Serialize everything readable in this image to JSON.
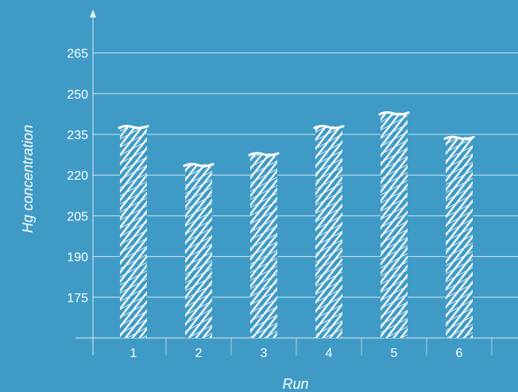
{
  "chart_data": {
    "type": "bar",
    "title": "",
    "xlabel": "Run",
    "ylabel": "Hg concentration",
    "categories": [
      "1",
      "2",
      "3",
      "4",
      "5",
      "6"
    ],
    "values": [
      238,
      224,
      228,
      238,
      243,
      234
    ],
    "y_ticks": [
      175,
      190,
      205,
      220,
      235,
      250,
      265
    ],
    "ylim": [
      160,
      280
    ],
    "grid": true,
    "legend": "none",
    "colors": {
      "background": "#3f9bc6",
      "bar_fill": "#ffffff",
      "gridline": "#ffffff",
      "axis": "#ffffff",
      "text": "#ffffff"
    },
    "bar_style": "hand-drawn hatched"
  }
}
